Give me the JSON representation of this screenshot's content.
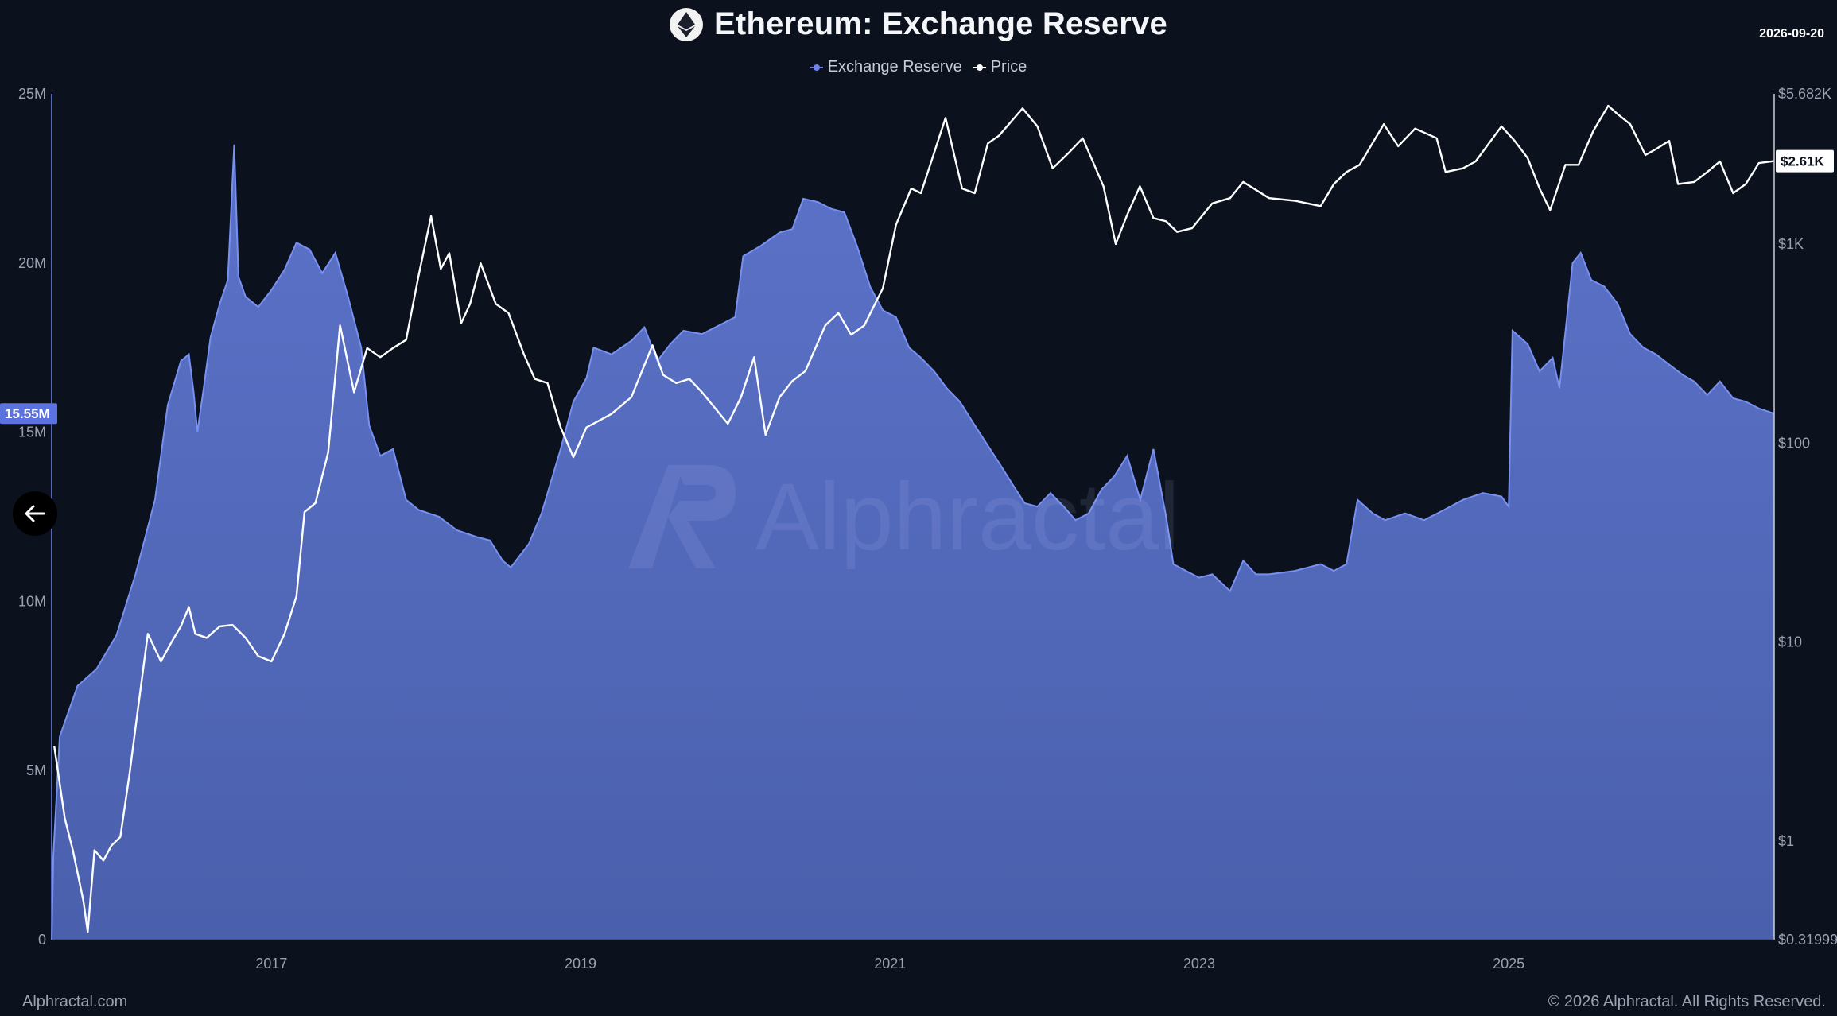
{
  "header": {
    "title": "Ethereum: Exchange Reserve",
    "date": "2026-09-20"
  },
  "legend": [
    {
      "label": "Exchange Reserve",
      "color": "#6e84ea"
    },
    {
      "label": "Price",
      "color": "#ffffff"
    }
  ],
  "watermark": "Alphractal",
  "footer": {
    "site": "Alphractal.com",
    "copyright": "© 2026 Alphractal. All Rights Reserved."
  },
  "colors": {
    "background": "#0b111d",
    "reserve_fill": "#4a60ad",
    "reserve_line": "#7890f2",
    "price_line": "#ffffff"
  },
  "icons": {
    "logo": "ethereum-icon",
    "back": "arrow-left-icon"
  },
  "chart_data": {
    "type": "area",
    "title": "Ethereum: Exchange Reserve",
    "x_ticks": [
      "2017",
      "2019",
      "2021",
      "2023",
      "2025"
    ],
    "x_range": [
      "2015-08-01",
      "2026-09-20"
    ],
    "left_axis": {
      "ticks": [
        "0",
        "5M",
        "10M",
        "15M",
        "20M",
        "25M"
      ],
      "range": [
        0,
        25000000
      ],
      "current_label": "15.55M"
    },
    "right_axis": {
      "scale": "log",
      "ticks": [
        "$0.31999",
        "$1",
        "$10",
        "$100",
        "$1K",
        "$5.682K"
      ],
      "range": [
        0.31999,
        5682
      ],
      "current_label": "$2.61K"
    },
    "series": [
      {
        "name": "Exchange Reserve",
        "axis": "left",
        "points": [
          [
            "2015-08-01",
            0
          ],
          [
            "2015-08-05",
            2500000
          ],
          [
            "2015-08-20",
            6000000
          ],
          [
            "2015-10-01",
            7500000
          ],
          [
            "2015-11-15",
            8000000
          ],
          [
            "2016-01-01",
            9000000
          ],
          [
            "2016-02-15",
            10800000
          ],
          [
            "2016-04-01",
            13000000
          ],
          [
            "2016-05-01",
            15800000
          ],
          [
            "2016-06-01",
            17100000
          ],
          [
            "2016-06-20",
            17300000
          ],
          [
            "2016-07-01",
            16200000
          ],
          [
            "2016-07-10",
            15000000
          ],
          [
            "2016-07-25",
            16300000
          ],
          [
            "2016-08-10",
            17800000
          ],
          [
            "2016-09-01",
            18800000
          ],
          [
            "2016-09-20",
            19500000
          ],
          [
            "2016-10-05",
            23500000
          ],
          [
            "2016-10-15",
            19600000
          ],
          [
            "2016-11-01",
            19000000
          ],
          [
            "2016-12-01",
            18700000
          ],
          [
            "2017-01-01",
            19200000
          ],
          [
            "2017-02-01",
            19800000
          ],
          [
            "2017-03-01",
            20600000
          ],
          [
            "2017-04-01",
            20400000
          ],
          [
            "2017-05-01",
            19700000
          ],
          [
            "2017-06-01",
            20300000
          ],
          [
            "2017-07-01",
            19000000
          ],
          [
            "2017-08-01",
            17500000
          ],
          [
            "2017-08-20",
            15200000
          ],
          [
            "2017-09-15",
            14300000
          ],
          [
            "2017-10-15",
            14500000
          ],
          [
            "2017-11-15",
            13000000
          ],
          [
            "2017-12-15",
            12700000
          ],
          [
            "2018-02-01",
            12500000
          ],
          [
            "2018-03-15",
            12100000
          ],
          [
            "2018-05-01",
            11900000
          ],
          [
            "2018-06-01",
            11800000
          ],
          [
            "2018-07-01",
            11200000
          ],
          [
            "2018-07-20",
            11000000
          ],
          [
            "2018-09-01",
            11700000
          ],
          [
            "2018-10-01",
            12600000
          ],
          [
            "2018-11-15",
            14500000
          ],
          [
            "2018-12-15",
            15900000
          ],
          [
            "2019-01-15",
            16600000
          ],
          [
            "2019-02-01",
            17500000
          ],
          [
            "2019-03-15",
            17300000
          ],
          [
            "2019-05-01",
            17700000
          ],
          [
            "2019-06-01",
            18100000
          ],
          [
            "2019-07-01",
            17100000
          ],
          [
            "2019-08-01",
            17600000
          ],
          [
            "2019-09-01",
            18000000
          ],
          [
            "2019-10-15",
            17900000
          ],
          [
            "2019-12-01",
            18200000
          ],
          [
            "2020-01-01",
            18400000
          ],
          [
            "2020-01-20",
            20200000
          ],
          [
            "2020-03-01",
            20500000
          ],
          [
            "2020-04-15",
            20900000
          ],
          [
            "2020-05-15",
            21000000
          ],
          [
            "2020-06-10",
            21900000
          ],
          [
            "2020-07-15",
            21800000
          ],
          [
            "2020-08-15",
            21600000
          ],
          [
            "2020-09-15",
            21500000
          ],
          [
            "2020-10-15",
            20500000
          ],
          [
            "2020-11-15",
            19300000
          ],
          [
            "2020-12-15",
            18600000
          ],
          [
            "2021-01-15",
            18400000
          ],
          [
            "2021-02-15",
            17500000
          ],
          [
            "2021-03-15",
            17200000
          ],
          [
            "2021-04-15",
            16800000
          ],
          [
            "2021-05-15",
            16300000
          ],
          [
            "2021-06-15",
            15900000
          ],
          [
            "2021-07-15",
            15300000
          ],
          [
            "2021-08-15",
            14700000
          ],
          [
            "2021-09-15",
            14100000
          ],
          [
            "2021-10-15",
            13500000
          ],
          [
            "2021-11-15",
            12900000
          ],
          [
            "2021-12-15",
            12800000
          ],
          [
            "2022-01-15",
            13200000
          ],
          [
            "2022-02-15",
            12800000
          ],
          [
            "2022-03-15",
            12400000
          ],
          [
            "2022-04-15",
            12600000
          ],
          [
            "2022-05-15",
            13300000
          ],
          [
            "2022-06-15",
            13700000
          ],
          [
            "2022-07-15",
            14300000
          ],
          [
            "2022-08-15",
            13000000
          ],
          [
            "2022-09-15",
            14500000
          ],
          [
            "2022-10-15",
            12500000
          ],
          [
            "2022-11-01",
            11100000
          ],
          [
            "2022-12-01",
            10900000
          ],
          [
            "2023-01-01",
            10700000
          ],
          [
            "2023-02-01",
            10800000
          ],
          [
            "2023-03-15",
            10300000
          ],
          [
            "2023-04-15",
            11200000
          ],
          [
            "2023-05-15",
            10800000
          ],
          [
            "2023-06-15",
            10800000
          ],
          [
            "2023-08-15",
            10900000
          ],
          [
            "2023-09-15",
            11000000
          ],
          [
            "2023-10-15",
            11100000
          ],
          [
            "2023-11-15",
            10900000
          ],
          [
            "2023-12-15",
            11100000
          ],
          [
            "2024-01-10",
            13000000
          ],
          [
            "2024-02-15",
            12600000
          ],
          [
            "2024-03-15",
            12400000
          ],
          [
            "2024-05-01",
            12600000
          ],
          [
            "2024-06-15",
            12400000
          ],
          [
            "2024-08-01",
            12700000
          ],
          [
            "2024-09-15",
            13000000
          ],
          [
            "2024-11-01",
            13200000
          ],
          [
            "2024-12-15",
            13100000
          ],
          [
            "2025-01-01",
            12800000
          ],
          [
            "2025-01-10",
            18000000
          ],
          [
            "2025-02-15",
            17600000
          ],
          [
            "2025-03-15",
            16800000
          ],
          [
            "2025-04-15",
            17200000
          ],
          [
            "2025-05-01",
            16300000
          ],
          [
            "2025-06-01",
            20000000
          ],
          [
            "2025-06-20",
            20300000
          ],
          [
            "2025-07-15",
            19500000
          ],
          [
            "2025-08-15",
            19300000
          ],
          [
            "2025-09-15",
            18800000
          ],
          [
            "2025-10-15",
            17900000
          ],
          [
            "2025-11-15",
            17500000
          ],
          [
            "2025-12-15",
            17300000
          ],
          [
            "2026-01-15",
            17000000
          ],
          [
            "2026-02-15",
            16700000
          ],
          [
            "2026-03-15",
            16500000
          ],
          [
            "2026-04-15",
            16100000
          ],
          [
            "2026-05-15",
            16500000
          ],
          [
            "2026-06-15",
            16000000
          ],
          [
            "2026-07-15",
            15900000
          ],
          [
            "2026-08-15",
            15700000
          ],
          [
            "2026-09-20",
            15550000
          ]
        ]
      },
      {
        "name": "Price",
        "axis": "right",
        "points": [
          [
            "2015-08-07",
            3
          ],
          [
            "2015-09-01",
            1.3
          ],
          [
            "2015-09-20",
            0.9
          ],
          [
            "2015-10-15",
            0.5
          ],
          [
            "2015-10-25",
            0.35
          ],
          [
            "2015-11-10",
            0.9
          ],
          [
            "2015-12-01",
            0.8
          ],
          [
            "2015-12-20",
            0.95
          ],
          [
            "2016-01-10",
            1.05
          ],
          [
            "2016-02-01",
            2.2
          ],
          [
            "2016-02-20",
            4.5
          ],
          [
            "2016-03-15",
            11
          ],
          [
            "2016-04-15",
            8
          ],
          [
            "2016-05-10",
            10
          ],
          [
            "2016-06-01",
            12
          ],
          [
            "2016-06-20",
            15
          ],
          [
            "2016-07-05",
            11
          ],
          [
            "2016-08-01",
            10.5
          ],
          [
            "2016-09-01",
            12
          ],
          [
            "2016-10-01",
            12.2
          ],
          [
            "2016-11-01",
            10.5
          ],
          [
            "2016-12-01",
            8.5
          ],
          [
            "2017-01-01",
            8
          ],
          [
            "2017-02-01",
            11
          ],
          [
            "2017-03-01",
            17
          ],
          [
            "2017-03-20",
            45
          ],
          [
            "2017-04-15",
            50
          ],
          [
            "2017-05-15",
            90
          ],
          [
            "2017-06-12",
            390
          ],
          [
            "2017-07-15",
            180
          ],
          [
            "2017-08-15",
            300
          ],
          [
            "2017-09-15",
            270
          ],
          [
            "2017-10-15",
            300
          ],
          [
            "2017-11-15",
            330
          ],
          [
            "2017-12-15",
            700
          ],
          [
            "2018-01-13",
            1380
          ],
          [
            "2018-02-05",
            750
          ],
          [
            "2018-02-25",
            900
          ],
          [
            "2018-03-25",
            400
          ],
          [
            "2018-04-15",
            500
          ],
          [
            "2018-05-10",
            800
          ],
          [
            "2018-06-15",
            500
          ],
          [
            "2018-07-15",
            450
          ],
          [
            "2018-08-20",
            280
          ],
          [
            "2018-09-15",
            210
          ],
          [
            "2018-10-15",
            200
          ],
          [
            "2018-11-15",
            120
          ],
          [
            "2018-12-15",
            85
          ],
          [
            "2019-01-15",
            120
          ],
          [
            "2019-02-15",
            130
          ],
          [
            "2019-03-15",
            140
          ],
          [
            "2019-05-01",
            170
          ],
          [
            "2019-06-20",
            310
          ],
          [
            "2019-07-15",
            220
          ],
          [
            "2019-08-15",
            200
          ],
          [
            "2019-09-15",
            210
          ],
          [
            "2019-10-15",
            180
          ],
          [
            "2019-12-15",
            125
          ],
          [
            "2020-01-15",
            170
          ],
          [
            "2020-02-15",
            270
          ],
          [
            "2020-03-13",
            110
          ],
          [
            "2020-04-15",
            170
          ],
          [
            "2020-05-15",
            205
          ],
          [
            "2020-06-15",
            230
          ],
          [
            "2020-08-01",
            390
          ],
          [
            "2020-09-01",
            450
          ],
          [
            "2020-10-01",
            350
          ],
          [
            "2020-11-01",
            390
          ],
          [
            "2020-12-15",
            600
          ],
          [
            "2021-01-15",
            1250
          ],
          [
            "2021-02-20",
            1900
          ],
          [
            "2021-03-15",
            1800
          ],
          [
            "2021-05-12",
            4300
          ],
          [
            "2021-06-20",
            1900
          ],
          [
            "2021-07-20",
            1800
          ],
          [
            "2021-08-20",
            3200
          ],
          [
            "2021-09-15",
            3500
          ],
          [
            "2021-11-10",
            4800
          ],
          [
            "2021-12-15",
            3900
          ],
          [
            "2022-01-20",
            2400
          ],
          [
            "2022-03-01",
            2900
          ],
          [
            "2022-04-01",
            3400
          ],
          [
            "2022-05-20",
            1950
          ],
          [
            "2022-06-18",
            1000
          ],
          [
            "2022-07-15",
            1400
          ],
          [
            "2022-08-14",
            1950
          ],
          [
            "2022-09-15",
            1350
          ],
          [
            "2022-10-15",
            1300
          ],
          [
            "2022-11-10",
            1150
          ],
          [
            "2022-12-15",
            1200
          ],
          [
            "2023-02-01",
            1600
          ],
          [
            "2023-03-15",
            1700
          ],
          [
            "2023-04-15",
            2050
          ],
          [
            "2023-06-15",
            1700
          ],
          [
            "2023-08-15",
            1650
          ],
          [
            "2023-10-15",
            1550
          ],
          [
            "2023-11-15",
            2000
          ],
          [
            "2023-12-15",
            2300
          ],
          [
            "2024-01-15",
            2500
          ],
          [
            "2024-03-12",
            4000
          ],
          [
            "2024-04-15",
            3100
          ],
          [
            "2024-05-25",
            3800
          ],
          [
            "2024-07-15",
            3400
          ],
          [
            "2024-08-05",
            2300
          ],
          [
            "2024-09-15",
            2400
          ],
          [
            "2024-10-15",
            2600
          ],
          [
            "2024-12-15",
            3900
          ],
          [
            "2025-01-15",
            3300
          ],
          [
            "2025-02-15",
            2700
          ],
          [
            "2025-03-15",
            1900
          ],
          [
            "2025-04-09",
            1480
          ],
          [
            "2025-05-15",
            2500
          ],
          [
            "2025-06-15",
            2500
          ],
          [
            "2025-07-20",
            3700
          ],
          [
            "2025-08-24",
            4950
          ],
          [
            "2025-09-15",
            4500
          ],
          [
            "2025-10-15",
            4000
          ],
          [
            "2025-11-20",
            2800
          ],
          [
            "2025-12-15",
            3000
          ],
          [
            "2026-01-15",
            3300
          ],
          [
            "2026-02-05",
            2000
          ],
          [
            "2026-03-15",
            2050
          ],
          [
            "2026-04-15",
            2300
          ],
          [
            "2026-05-15",
            2600
          ],
          [
            "2026-06-15",
            1800
          ],
          [
            "2026-07-15",
            2000
          ],
          [
            "2026-08-15",
            2550
          ],
          [
            "2026-09-20",
            2610
          ]
        ]
      }
    ]
  }
}
